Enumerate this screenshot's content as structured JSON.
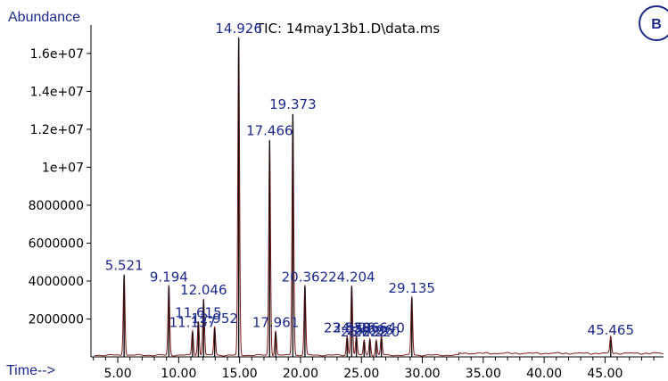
{
  "colors": {
    "axis_label": "#1b2a8a",
    "peak_label": "#1b2a8a",
    "trace": "#7a1414",
    "axis": "#000000",
    "badge": "#1b2a8a"
  },
  "panel_badge": "B",
  "chart_data": {
    "type": "line",
    "title": "TIC: 14may13b1.D\\data.ms",
    "ylabel": "Abundance",
    "xlabel": "Time-->",
    "xlim": [
      2.8,
      49.8
    ],
    "ylim": [
      0,
      17500000
    ],
    "x_ticks": [
      5,
      10,
      15,
      20,
      25,
      30,
      35,
      40,
      45
    ],
    "x_tick_labels": [
      "5.00",
      "10.00",
      "15.00",
      "20.00",
      "25.00",
      "30.00",
      "35.00",
      "40.00",
      "45.00"
    ],
    "y_ticks": [
      2000000,
      4000000,
      6000000,
      8000000,
      10000000,
      12000000,
      14000000,
      16000000
    ],
    "y_tick_labels": [
      "2000000",
      "4000000",
      "6000000",
      "8000000",
      "1e+07",
      "1.2e+07",
      "1.4e+07",
      "1.6e+07"
    ],
    "grid": false,
    "peaks": [
      {
        "rt": 5.521,
        "label": "5.521",
        "height": 4300000
      },
      {
        "rt": 9.194,
        "label": "9.194",
        "height": 3700000
      },
      {
        "rt": 11.137,
        "label": "11.137",
        "height": 1300000
      },
      {
        "rt": 11.615,
        "label": "11.615",
        "height": 1800000
      },
      {
        "rt": 12.046,
        "label": "12.046",
        "height": 3000000
      },
      {
        "rt": 12.952,
        "label": "12.952",
        "height": 1500000
      },
      {
        "rt": 14.926,
        "label": "14.926",
        "height": 16800000
      },
      {
        "rt": 17.466,
        "label": "17.466",
        "height": 11400000
      },
      {
        "rt": 17.961,
        "label": "17.961",
        "height": 1300000
      },
      {
        "rt": 19.373,
        "label": "19.373",
        "height": 12800000
      },
      {
        "rt": 20.362,
        "label": "20.362",
        "height": 3700000
      },
      {
        "rt": 23.829,
        "label": "23.829",
        "height": 1000000
      },
      {
        "rt": 24.204,
        "label": "24.204",
        "height": 3700000
      },
      {
        "rt": 24.586,
        "label": "24.586",
        "height": 1000000
      },
      {
        "rt": 25.222,
        "label": "25.222",
        "height": 800000
      },
      {
        "rt": 25.696,
        "label": "25.696",
        "height": 900000
      },
      {
        "rt": 26.22,
        "label": "26.220",
        "height": 800000
      },
      {
        "rt": 26.64,
        "label": "26.640",
        "height": 1000000
      },
      {
        "rt": 29.135,
        "label": "29.135",
        "height": 3100000
      },
      {
        "rt": 45.465,
        "label": "45.465",
        "height": 900000
      }
    ]
  }
}
